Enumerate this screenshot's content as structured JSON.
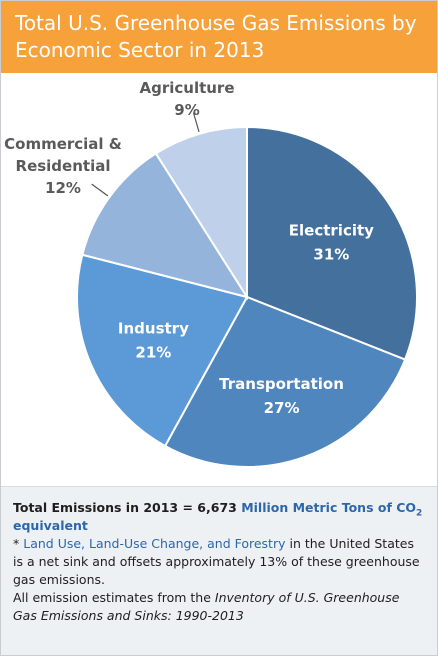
{
  "header": {
    "title_line1": "Total U.S. Greenhouse Gas Emissions by",
    "title_line2": "Economic Sector in 2013"
  },
  "chart_data": {
    "type": "pie",
    "title": "Total U.S. Greenhouse Gas Emissions by Economic Sector in 2013",
    "slices": [
      {
        "label": "Electricity",
        "value": 31,
        "value_label": "31%",
        "color": "#44709e"
      },
      {
        "label": "Transportation",
        "value": 27,
        "value_label": "27%",
        "color": "#4f86bd"
      },
      {
        "label": "Industry",
        "value": 21,
        "value_label": "21%",
        "color": "#5b9ad6"
      },
      {
        "label": "Commercial & Residential",
        "value": 12,
        "value_label": "12%",
        "color": "#94b4dc"
      },
      {
        "label": "Agriculture",
        "value": 9,
        "value_label": "9%",
        "color": "#bed0ea"
      }
    ]
  },
  "footer": {
    "total_prefix": "Total Emissions in 2013 = 6,673",
    "total_unit_main": "Million Metric Tons of CO",
    "total_unit_sub": "2",
    "total_unit_end": "equivalent",
    "note_star": "* ",
    "note_link": "Land Use, Land-Use Change, and Forestry",
    "note_rest": " in the United States is a net sink and offsets approximately 13% of these greenhouse gas emissions.",
    "source_prefix": "All emission estimates from the ",
    "source_title": "Inventory of U.S. Greenhouse Gas Emissions and Sinks: 1990-2013"
  }
}
